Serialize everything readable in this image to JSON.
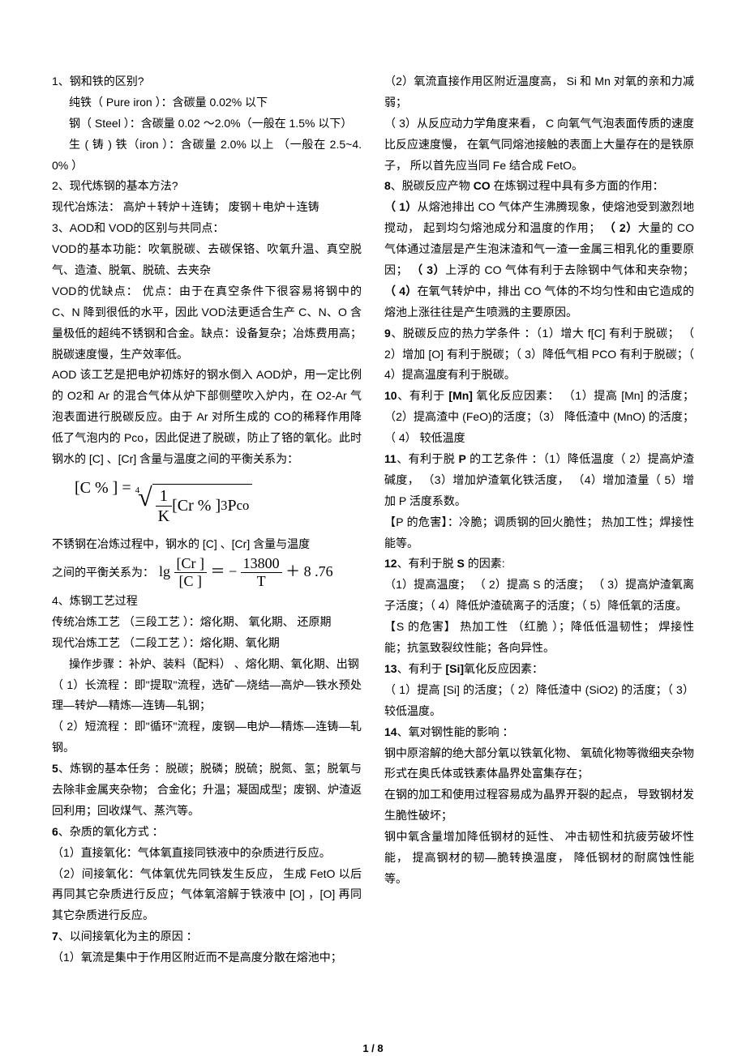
{
  "left": {
    "q1_h": "1、钢和铁的区别?",
    "q1_1": "纯铁（ Pure iron ）：含碳量 0.02% 以下",
    "q1_2": "钢（ Steel ）：含碳量 0.02 ～2.0%（一般在 1.5% 以下）",
    "q1_3": "生 ( 铸 ) 铁（iron ）：含碳量 2.0% 以上 （一般在 2.5~4.0% ）",
    "q2_h": "2、现代炼钢的基本方法?",
    "q2_1": "现代冶炼法： 高炉＋转炉＋连铸； 废钢＋电炉＋连铸",
    "q3_h": "3、AOD和 VOD的区别与共同点：",
    "q3_1": "VOD的基本功能：吹氧脱碳、去碳保铬、吹氧升温、真空脱气、造渣、脱氧、脱硫、去夹杂",
    "q3_2": "VOD的优缺点： 优点：由于在真空条件下很容易将钢中的 C、N 降到很低的水平，因此 VOD法更适合生产 C、N、O 含量极低的超纯不锈钢和合金。缺点：设备复杂；冶炼费用高；脱碳速度慢，生产效率低。",
    "q3_3": "AOD 该工艺是把电炉初炼好的钢水倒入 AOD炉，用一定比例的 O2和 Ar 的混合气体从炉下部侧壁吹入炉内，在 O2-Ar 气泡表面进行脱碳反应。由于 Ar 对所生成的 CO的稀释作用降低了气泡内的 Pco，因此促进了脱碳，防止了铬的氧化。此时钢水的 [C] 、[Cr] 含量与温度之间的平衡关系为：",
    "q3_f1": {
      "lhs": "[C % ] = ",
      "root_idx": "4",
      "num": "1",
      "den": "K",
      "mid": " [Cr % ]",
      "exp": "3",
      "pco": " P",
      "pco_sub": "co"
    },
    "q3_4": "不锈钢在冶炼过程中，钢水的 [C] 、[Cr] 含量与温度",
    "q3_5": "之间的平衡关系为：",
    "q3_f2": {
      "pre": "lg ",
      "num": "[Cr ]",
      "den": "[C ]",
      "mid": " ＝ − ",
      "num2": "13800",
      "den2": "T",
      "tail": " ＋ 8 .76"
    },
    "q4_h": "4、炼钢工艺过程",
    "q4_1": "传统冶炼工艺 （三段工艺 ）：熔化期、 氧化期、 还原期",
    "q4_2": "现代冶炼工艺 （二段工艺 ）：熔化期、氧化期",
    "q4_3": "操作步骤 ：补炉、装料（配料） 、熔化期、氧化期、出钢",
    "q4_4": "（ 1）长流程 ：即\"提取\"流程，选矿—烧结—高炉—铁水预处理—转炉—精炼—连铸—轧钢；",
    "q4_5": "（ 2）短流程 ：即\"循环\"流程，废钢—电炉—精炼—连铸—轧钢。",
    "q5_h": "5",
    "q5_t": "、炼钢的基本任务 ：脱碳；脱磷；脱硫；脱氮、氢；脱氧与去除非金属夹杂物； 合金化；升温；凝固成型；废钢、炉渣返回利用；回收煤气、蒸汽等。",
    "q6_h": "6",
    "q6_t": "、杂质的氧化方式 ：",
    "q6_1": "（1）直接氧化：气体氧直接同铁液中的杂质进行反应。",
    "q6_2": "（2）间接氧化：气体氧优先同铁发生反应， 生成 FetO 以后再同其它杂质进行反应；气体氧溶解于铁液中 [O] ，[O] 再同其它杂质进行反应。"
  },
  "right": {
    "q7_h": "7",
    "q7_t": "、以间接氧化为主的原因 ：",
    "q7_1": "（1）氧流是集中于作用区附近而不是高度分散在熔池中；",
    "q7_2": "（2）氧流直接作用区附近温度高， Si 和 Mn 对氧的亲和力减弱；",
    "q7_3": "（ 3）从反应动力学角度来看， C 向氧气气泡表面传质的速度比反应速度慢， 在氧气同熔池接触的表面上大量存在的是铁原子， 所以首先应当同 Fe 结合成 FetO。",
    "q8_h": "8",
    "q8_t": "、脱碳反应产物 ",
    "q8_b": "CO",
    "q8_t2": " 在炼钢过程中具有多方面的作用：",
    "q8_1a": "（ 1）",
    "q8_1b": "从熔池排出 CO 气体产生沸腾现象，使熔池受到激烈地搅动， 起到均匀熔池成分和温度的作用；",
    "q8_2a": "（ 2）",
    "q8_2b": "大量的 CO 气体通过渣层是产生泡沫渣和气一渣一金属三相乳化的重要原因；",
    "q8_3a": "（ 3）",
    "q8_3b": "上浮的 CO 气体有利于去除钢中气体和夹杂物；",
    "q8_4a": "（ 4）",
    "q8_4b": "在氧气转炉中，排出 CO 气体的不均匀性和由它造成的熔池上涨往往是产生喷溅的主要原因。",
    "q9_h": "9",
    "q9_t": "、脱碳反应的热力学条件 ：（1）增大 f[C] 有利于脱碳； （ 2）增加 [O] 有利于脱碳；（ 3）降低气相 PCO 有利于脱碳；（ 4）提高温度有利于脱碳。",
    "q10_h": "10",
    "q10_t": "、有利于 ",
    "q10_b": "[Mn]",
    "q10_t2": " 氧化反应因素： （1）提高 [Mn] 的活度；（2）提高渣中 (FeO)的活度；（3） 降低渣中 (MnO) 的活度；（ 4） 较低温度",
    "q11_h": "11",
    "q11_t": "、有利于脱 ",
    "q11_b": "P",
    "q11_t2": " 的工艺条件 ：（1）降低温度（ 2）提高炉渣碱度， （3）增加炉渣氧化铁活度， （4）增加渣量（ 5）增加 P 活度系数。",
    "q11_3": "【P 的危害】：冷脆；调质钢的回火脆性； 热加工性；焊接性能等。",
    "q12_h": "12",
    "q12_t": "、有利于脱 ",
    "q12_b": "S",
    "q12_t2": " 的因素:",
    "q12_1": "（1）提高温度； （ 2）提高 S 的活度； （ 3）提高炉渣氧离子活度；（ 4）降低炉渣硫离子的活度；（ 5）降低氧的活度。",
    "q12_2": "【S 的危害】 热加工性 （红脆 ）；降低低温韧性； 焊接性能；抗氢致裂纹性能；各向异性。",
    "q13_h": "13",
    "q13_t": "、有利于 ",
    "q13_b": "[Si]",
    "q13_t2": "氧化反应因素：",
    "q13_1": "（ 1）提高 [Si] 的活度；（ 2）降低渣中 (SiO2) 的活度；（ 3）较低温度。",
    "q14_h": "14",
    "q14_t": "、氧对钢性能的影响 ：",
    "q14_1": "钢中原溶解的绝大部分氧以铁氧化物、 氧硫化物等微细夹杂物形式在奥氏体或铁素体晶界处富集存在；",
    "q14_2": "在钢的加工和使用过程容易成为晶界开裂的起点， 导致钢材发生脆性破坏；",
    "q14_3": "钢中氧含量增加降低钢材的延性、 冲击韧性和抗疲劳破坏性能， 提高钢材的韧—脆转换温度， 降低钢材的耐腐蚀性能等。"
  },
  "footer": "1 / 8"
}
